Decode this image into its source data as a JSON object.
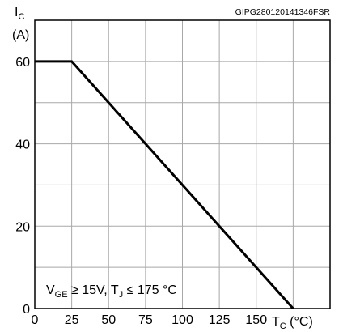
{
  "chart_data": {
    "type": "line",
    "figure_ref": "GIPG280120141346FSR",
    "ylabel": {
      "main": "I",
      "sub": "C",
      "unit": "(A)"
    },
    "xlabel": {
      "main": "T",
      "sub": "C",
      "unit": " (°C)"
    },
    "annotation": {
      "v": "V",
      "v_sub": "GE",
      "v_text": " ≥ 15V, T",
      "t_sub": "J",
      "t_text": " ≤ 175 °C"
    },
    "xlim": [
      0,
      200
    ],
    "ylim": [
      0,
      70
    ],
    "x_ticks": [
      "0",
      "25",
      "50",
      "75",
      "100",
      "125",
      "150"
    ],
    "y_ticks": [
      "0",
      "20",
      "40",
      "60"
    ],
    "x_tick_values": [
      0,
      25,
      50,
      75,
      100,
      125,
      150
    ],
    "y_tick_values": [
      0,
      20,
      40,
      60
    ],
    "grid": true,
    "series": [
      {
        "x": [
          0,
          25,
          175
        ],
        "y": [
          60,
          60,
          0
        ]
      }
    ]
  }
}
